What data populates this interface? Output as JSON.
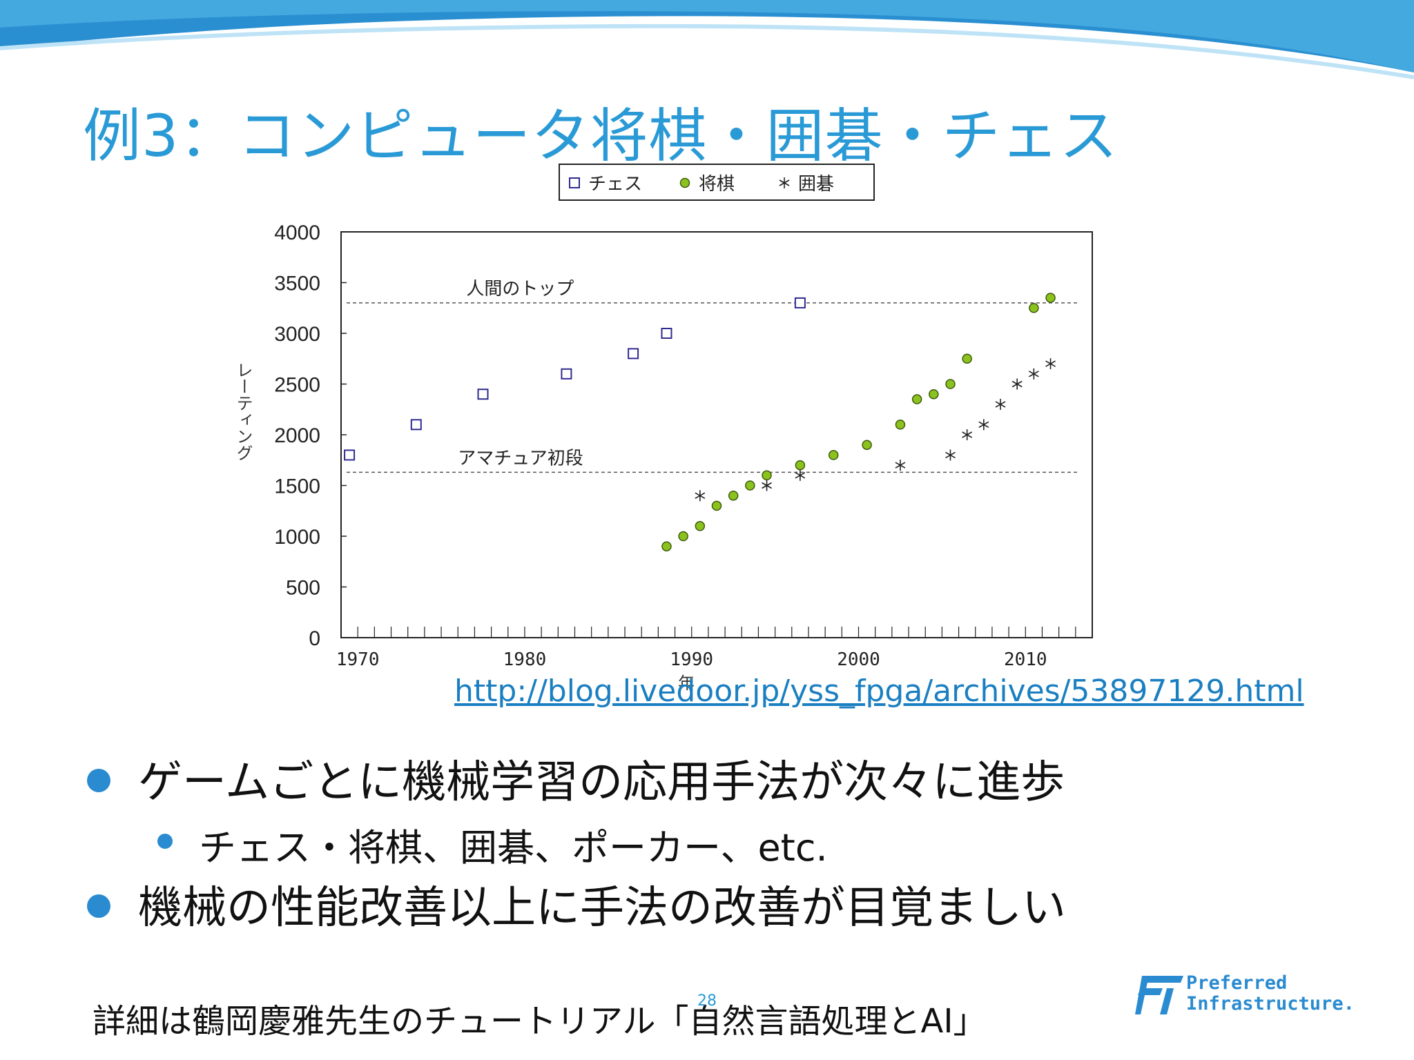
{
  "slide": {
    "title": "例3：コンピュータ将棋・囲碁・チェス",
    "link": "http://blog.livedoor.jp/yss_fpga/archives/53897129.html",
    "bullets": [
      "ゲームごとに機械学習の応用手法が次々に進歩",
      "チェス・将棋、囲碁、ポーカー、etc.",
      "機械の性能改善以上に手法の改善が目覚ましい"
    ],
    "footnote": "詳細は鶴岡慶雅先生のチュートリアル「自然言語処理とAI」",
    "page_number": "28",
    "logo": {
      "line1": "Preferred",
      "line2": "Infrastructure."
    },
    "colors": {
      "accent": "#2a9ad6",
      "shogi": "#8cc21e",
      "chess": "#2e2a8f"
    }
  },
  "chart_data": {
    "type": "scatter",
    "ylabel": "レーティング",
    "xlabel": "年",
    "xlim": [
      1969,
      2014
    ],
    "ylim": [
      0,
      4000
    ],
    "x_ticks": [
      1970,
      1980,
      1990,
      2000,
      2010
    ],
    "y_ticks": [
      0,
      500,
      1000,
      1500,
      2000,
      2500,
      3000,
      3500,
      4000
    ],
    "legend_position": "top-center",
    "series": [
      {
        "name": "チェス",
        "marker": "open-square",
        "points": [
          [
            1969.5,
            1800
          ],
          [
            1973.5,
            2100
          ],
          [
            1977.5,
            2400
          ],
          [
            1982.5,
            2600
          ],
          [
            1986.5,
            2800
          ],
          [
            1988.5,
            3000
          ],
          [
            1996.5,
            3300
          ]
        ]
      },
      {
        "name": "将棋",
        "marker": "filled-circle",
        "points": [
          [
            1988.5,
            900
          ],
          [
            1989.5,
            1000
          ],
          [
            1990.5,
            1100
          ],
          [
            1991.5,
            1300
          ],
          [
            1992.5,
            1400
          ],
          [
            1993.5,
            1500
          ],
          [
            1994.5,
            1600
          ],
          [
            1996.5,
            1700
          ],
          [
            1998.5,
            1800
          ],
          [
            2000.5,
            1900
          ],
          [
            2002.5,
            2100
          ],
          [
            2003.5,
            2350
          ],
          [
            2004.5,
            2400
          ],
          [
            2005.5,
            2500
          ],
          [
            2006.5,
            2750
          ],
          [
            2010.5,
            3250
          ],
          [
            2011.5,
            3350
          ]
        ]
      },
      {
        "name": "囲碁",
        "marker": "asterisk",
        "points": [
          [
            1990.5,
            1400
          ],
          [
            1994.5,
            1500
          ],
          [
            1996.5,
            1600
          ],
          [
            2002.5,
            1700
          ],
          [
            2005.5,
            1800
          ],
          [
            2006.5,
            2000
          ],
          [
            2007.5,
            2100
          ],
          [
            2008.5,
            2300
          ],
          [
            2009.5,
            2500
          ],
          [
            2010.5,
            2600
          ],
          [
            2011.5,
            2700
          ]
        ]
      }
    ],
    "reference_lines": [
      {
        "label": "人間のトップ",
        "y": 3300
      },
      {
        "label": "アマチュア初段",
        "y": 1630
      }
    ]
  }
}
